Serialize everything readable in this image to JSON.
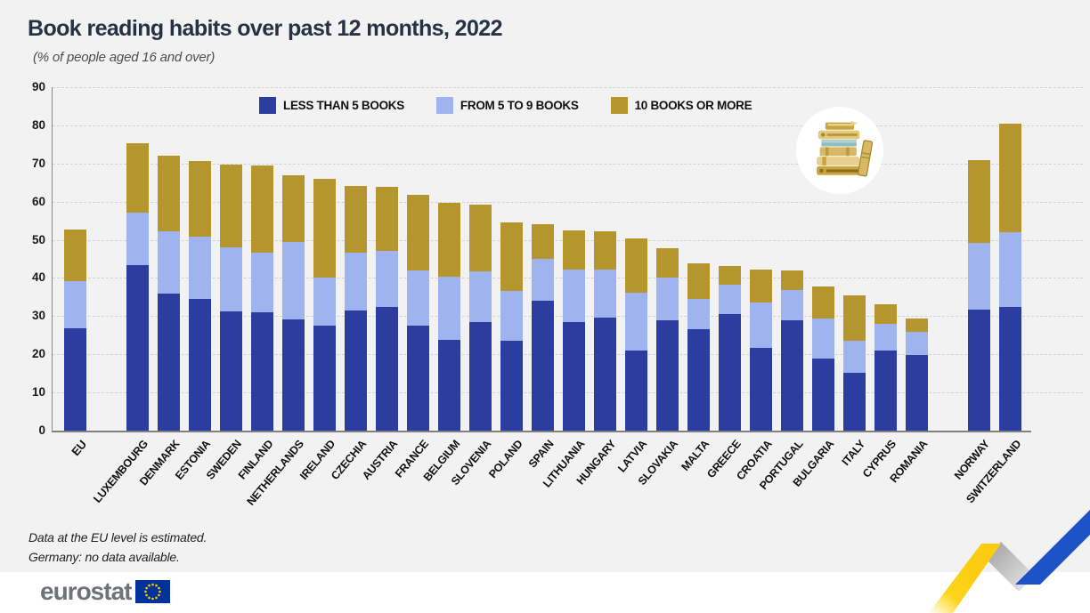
{
  "header": {
    "title": "Book reading habits over past 12 months, 2022",
    "subtitle": "(% of people aged 16 and over)"
  },
  "legend": [
    {
      "label": "LESS THAN 5 BOOKS",
      "color": "#2b3d9f"
    },
    {
      "label": "FROM 5 TO 9 BOOKS",
      "color": "#9fb3ef"
    },
    {
      "label": "10 BOOKS OR MORE",
      "color": "#b5952d"
    }
  ],
  "colors": {
    "background": "#f2f2f2",
    "axis": "#7f7f7f",
    "ribbon_yellow": "#fdd51b",
    "ribbon_gray": "#b9b9b9",
    "ribbon_blue": "#1d53c5",
    "eu_flag_blue": "#003399",
    "eu_flag_stars": "#ffcc00"
  },
  "icons": {
    "books_icon": "stack-of-books",
    "eu_flag_icon": "eu-flag"
  },
  "chart_data": {
    "type": "bar",
    "stacked": true,
    "title": "Book reading habits over past 12 months, 2022",
    "unit": "% of people aged 16 and over",
    "ylim": [
      0,
      90
    ],
    "yticks": [
      0,
      10,
      20,
      30,
      40,
      50,
      60,
      70,
      80,
      90
    ],
    "grid": "horizontal-dashed",
    "legend_position": "top-center",
    "series_names": [
      "LESS THAN 5 BOOKS",
      "FROM 5 TO 9 BOOKS",
      "10 BOOKS OR MORE"
    ],
    "series_colors": [
      "#2b3d9f",
      "#9fb3ef",
      "#b5952d"
    ],
    "groups": [
      {
        "name": "eu-aggregate",
        "items": [
          {
            "label": "EU",
            "bold": true,
            "values": [
              26.8,
              12.3,
              13.7
            ]
          }
        ]
      },
      {
        "name": "eu-members",
        "items": [
          {
            "label": "LUXEMBOURG",
            "values": [
              43.3,
              13.9,
              18.1
            ]
          },
          {
            "label": "DENMARK",
            "values": [
              35.9,
              16.4,
              19.8
            ]
          },
          {
            "label": "ESTONIA",
            "values": [
              34.6,
              16.3,
              19.8
            ]
          },
          {
            "label": "SWEDEN",
            "values": [
              31.3,
              16.8,
              21.6
            ]
          },
          {
            "label": "FINLAND",
            "values": [
              31.1,
              15.6,
              22.8
            ]
          },
          {
            "label": "NETHERLANDS",
            "values": [
              29.2,
              20.2,
              17.6
            ]
          },
          {
            "label": "IRELAND",
            "values": [
              27.6,
              12.4,
              26.0
            ]
          },
          {
            "label": "CZECHIA",
            "values": [
              31.5,
              15.1,
              17.6
            ]
          },
          {
            "label": "AUSTRIA",
            "values": [
              32.3,
              14.7,
              16.9
            ]
          },
          {
            "label": "FRANCE",
            "values": [
              27.6,
              14.4,
              19.7
            ]
          },
          {
            "label": "BELGIUM",
            "values": [
              23.7,
              16.7,
              19.4
            ]
          },
          {
            "label": "SLOVENIA",
            "values": [
              28.4,
              13.4,
              17.4
            ]
          },
          {
            "label": "POLAND",
            "values": [
              23.5,
              13.0,
              18.1
            ]
          },
          {
            "label": "SPAIN",
            "values": [
              34.0,
              10.9,
              9.3
            ]
          },
          {
            "label": "LITHUANIA",
            "values": [
              28.5,
              13.8,
              10.1
            ]
          },
          {
            "label": "HUNGARY",
            "values": [
              29.6,
              12.5,
              10.2
            ]
          },
          {
            "label": "LATVIA",
            "values": [
              21.0,
              15.2,
              14.2
            ]
          },
          {
            "label": "SLOVAKIA",
            "values": [
              29.0,
              11.0,
              7.8
            ]
          },
          {
            "label": "MALTA",
            "values": [
              26.7,
              7.7,
              9.5
            ]
          },
          {
            "label": "GREECE",
            "values": [
              30.6,
              7.6,
              5.0
            ]
          },
          {
            "label": "CROATIA",
            "values": [
              21.6,
              11.9,
              8.7
            ]
          },
          {
            "label": "PORTUGAL",
            "values": [
              29.0,
              7.8,
              5.2
            ]
          },
          {
            "label": "BULGARIA",
            "values": [
              18.9,
              10.5,
              8.3
            ]
          },
          {
            "label": "ITALY",
            "values": [
              15.2,
              8.4,
              11.8
            ]
          },
          {
            "label": "CYPRUS",
            "values": [
              21.1,
              6.8,
              5.2
            ]
          },
          {
            "label": "ROMANIA",
            "values": [
              19.8,
              6.1,
              3.5
            ]
          }
        ]
      },
      {
        "name": "efta",
        "items": [
          {
            "label": "NORWAY",
            "values": [
              31.7,
              17.4,
              21.8
            ]
          },
          {
            "label": "SWITZERLAND",
            "values": [
              32.3,
              19.6,
              28.6
            ]
          }
        ]
      }
    ]
  },
  "footnotes": {
    "line1": "Data at the EU level is estimated.",
    "line2": "Germany: no data available."
  },
  "logo": {
    "text": "eurostat"
  }
}
